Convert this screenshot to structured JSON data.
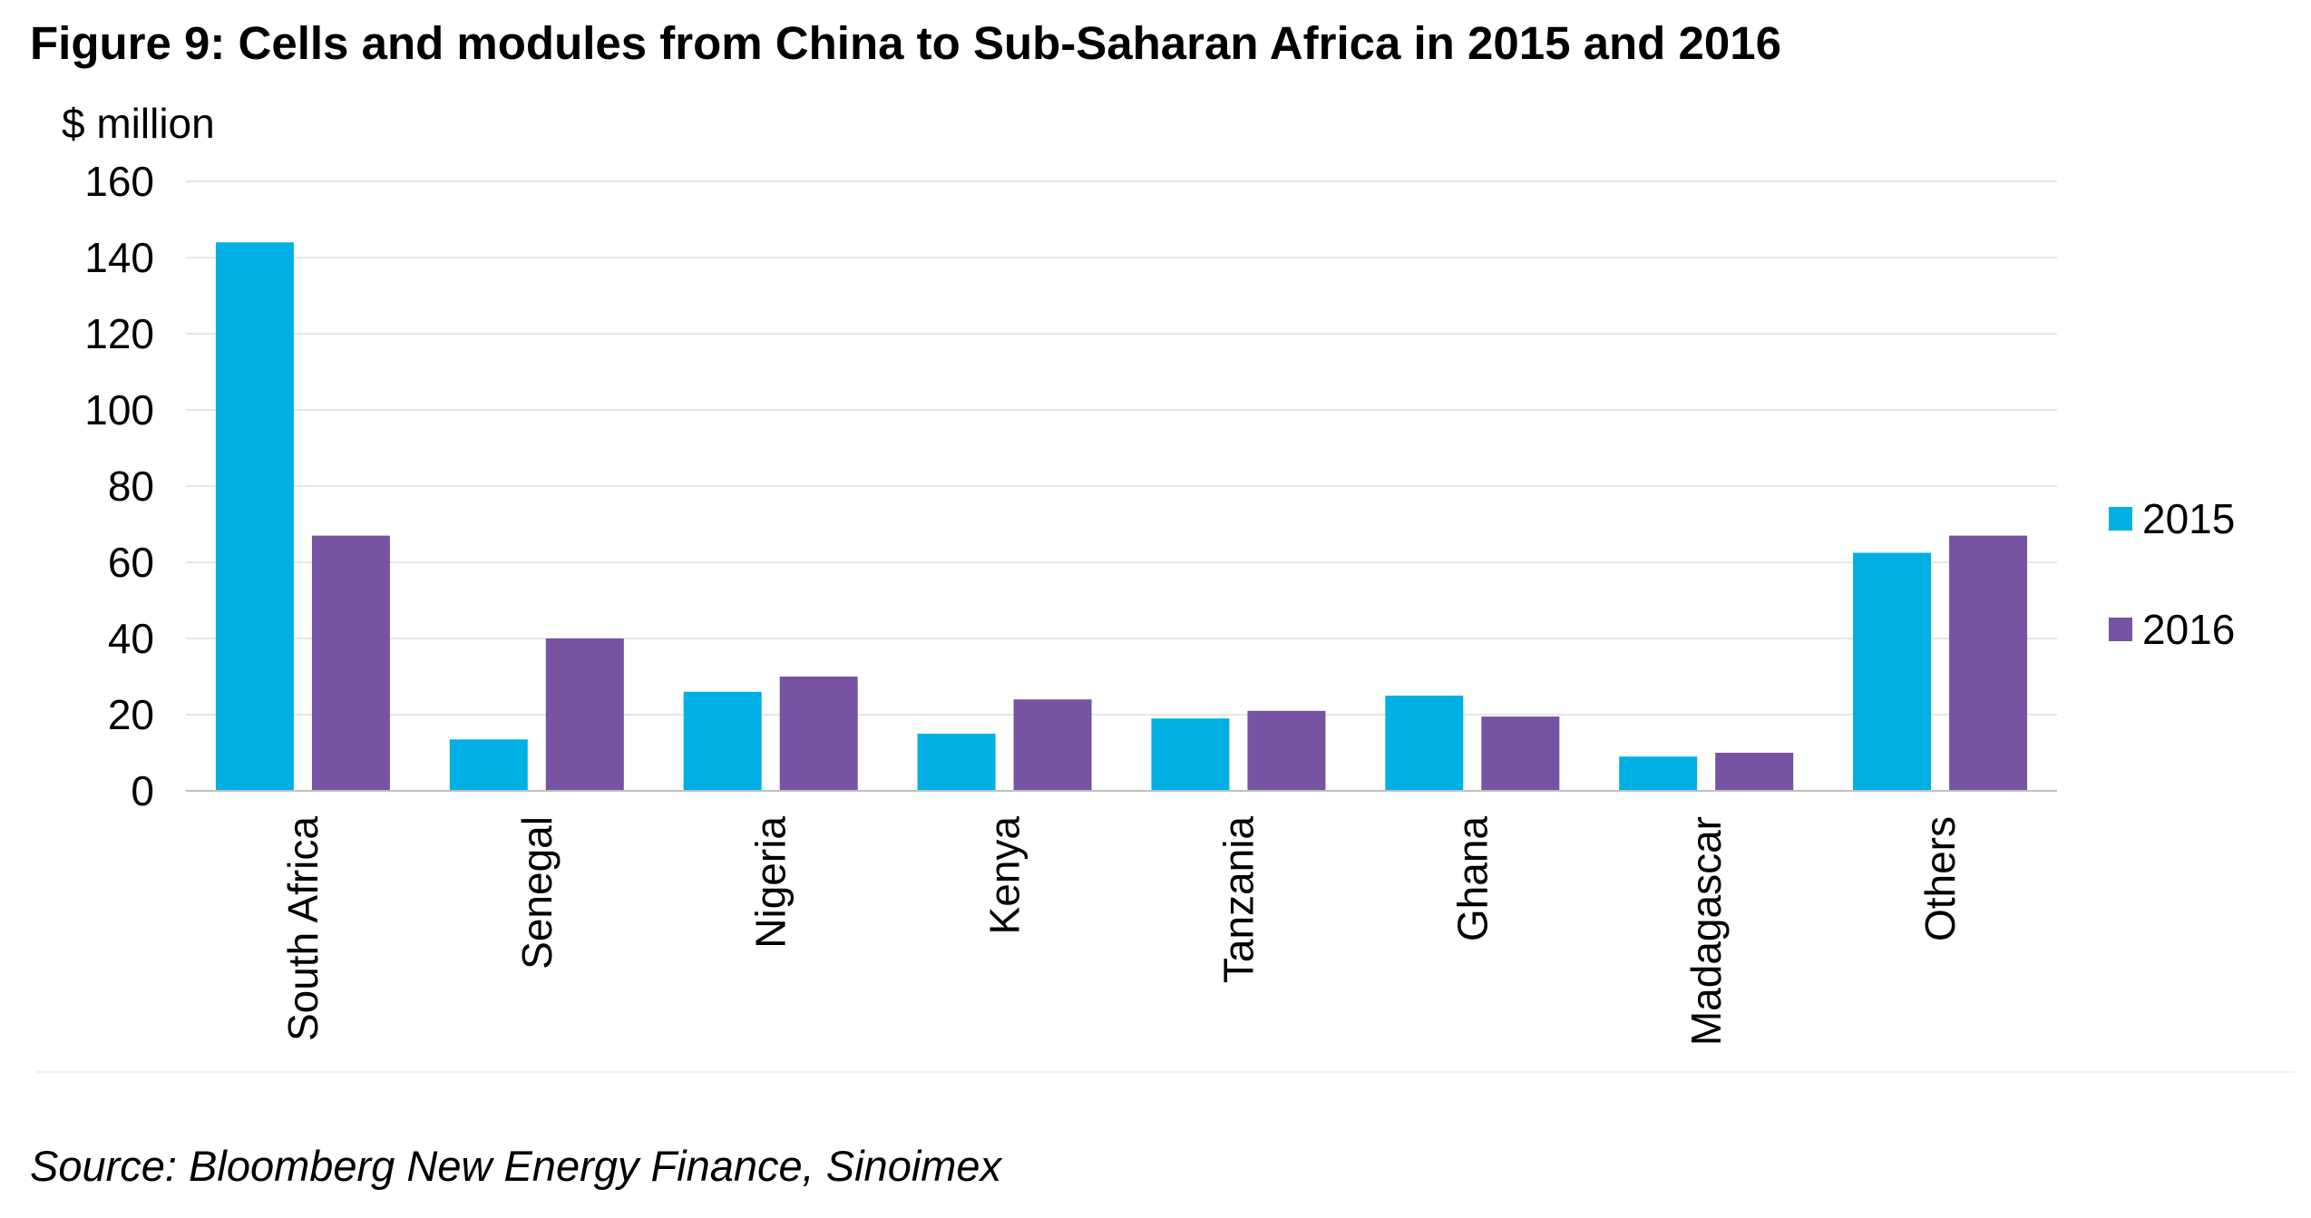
{
  "figure": {
    "title": "Figure 9: Cells and modules from China to Sub-Saharan Africa in 2015 and 2016",
    "source": "Source: Bloomberg New Energy Finance, Sinoimex"
  },
  "chart_data": {
    "type": "bar",
    "title": "Figure 9: Cells and modules from China to Sub-Saharan Africa in 2015 and 2016",
    "ylabel": "$ million",
    "xlabel": "",
    "categories": [
      "South Africa",
      "Senegal",
      "Nigeria",
      "Kenya",
      "Tanzania",
      "Ghana",
      "Madagascar",
      "Others"
    ],
    "series": [
      {
        "name": "2015",
        "color": "#00B0E4",
        "values": [
          144,
          13.5,
          26,
          15,
          19,
          25,
          9,
          62.5
        ]
      },
      {
        "name": "2016",
        "color": "#7653A3",
        "values": [
          67,
          40,
          30,
          24,
          21,
          19.5,
          10,
          67
        ]
      }
    ],
    "ylim": [
      0,
      160
    ],
    "yticks": [
      0,
      20,
      40,
      60,
      80,
      100,
      120,
      140,
      160
    ],
    "grid": true,
    "legend": "right"
  }
}
